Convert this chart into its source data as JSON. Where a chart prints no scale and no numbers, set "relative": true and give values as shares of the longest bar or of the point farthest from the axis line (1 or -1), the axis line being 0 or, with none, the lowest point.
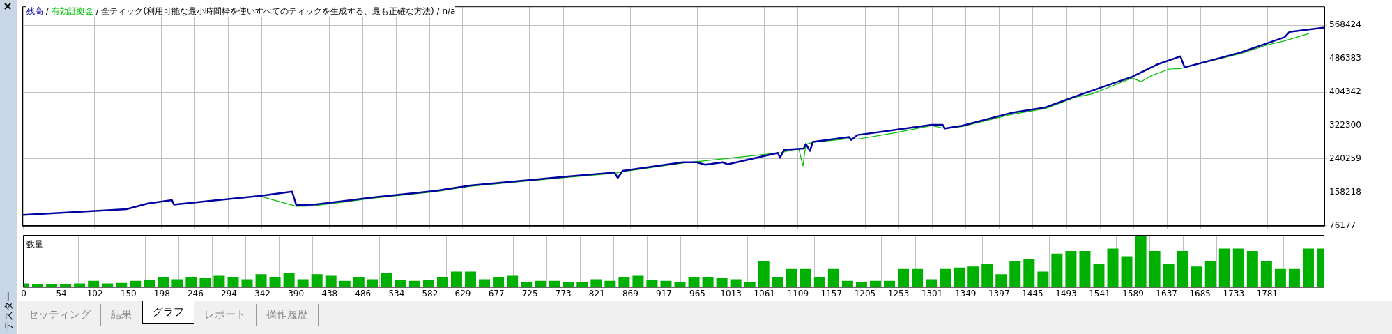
{
  "chart_data": [
    {
      "type": "line",
      "title": "全ティック(利用可能な最小時間枠を使いすべてのティックを生成する、最も正確な方法) / n/a",
      "annotations": [
        "/",
        "/"
      ],
      "legend": "top left",
      "grid": true,
      "tick_labels": "y",
      "xlim": [
        0,
        1862
      ],
      "xticks": [
        0,
        54,
        102,
        150,
        198,
        246,
        294,
        342,
        390,
        438,
        486,
        534,
        582,
        629,
        677,
        725,
        773,
        821,
        869,
        917,
        965,
        1013,
        1061,
        1109,
        1157,
        1205,
        1253,
        1301,
        1349,
        1397,
        1445,
        1493,
        1541,
        1589,
        1637,
        1685,
        1733,
        1781
      ],
      "ylim": [
        76177,
        613000
      ],
      "yticks": [
        76177,
        158218,
        240259,
        322300,
        404342,
        486383,
        568424
      ],
      "series": [
        {
          "name": "残高",
          "color": "#0000a0",
          "x": [
            0,
            148,
            179,
            213,
            216,
            266,
            341,
            385,
            391,
            416,
            497,
            590,
            640,
            777,
            846,
            851,
            858,
            944,
            964,
            976,
            1001,
            1008,
            1080,
            1083,
            1089,
            1117,
            1120,
            1126,
            1130,
            1182,
            1185,
            1194,
            1300,
            1316,
            1319,
            1344,
            1413,
            1463,
            1506,
            1587,
            1624,
            1656,
            1662,
            1743,
            1805,
            1812,
            1862
          ],
          "values": [
            103000,
            117000,
            131000,
            139000,
            128000,
            137000,
            150000,
            160000,
            127000,
            128000,
            145000,
            162000,
            175000,
            197000,
            207000,
            194000,
            211000,
            232000,
            232000,
            226000,
            232000,
            227000,
            255000,
            243000,
            263000,
            266000,
            277000,
            260000,
            282000,
            294000,
            287000,
            299000,
            324000,
            324000,
            315000,
            322000,
            353000,
            367000,
            394000,
            442000,
            473000,
            492000,
            465000,
            502000,
            539000,
            552000,
            563000
          ]
        },
        {
          "name": "有効証拠金",
          "color": "#00c000",
          "x": [
            341,
            391,
            416,
            497,
            590,
            640,
            777,
            846,
            858,
            944,
            1080,
            1083,
            1100,
            1110,
            1116,
            1120,
            1130,
            1182,
            1194,
            1250,
            1300,
            1319,
            1344,
            1413,
            1463,
            1506,
            1530,
            1550,
            1587,
            1600,
            1615,
            1640,
            1656,
            1662,
            1743,
            1780,
            1805,
            1840
          ],
          "values": [
            148000,
            124000,
            125000,
            143000,
            160000,
            173000,
            195000,
            205000,
            209000,
            230000,
            255000,
            255000,
            262000,
            265000,
            223000,
            276000,
            281000,
            290000,
            289000,
            305000,
            322000,
            315000,
            320000,
            349000,
            364000,
            392000,
            400000,
            414000,
            439000,
            430000,
            445000,
            461000,
            462000,
            465000,
            499000,
            520000,
            530000,
            548000
          ]
        }
      ]
    },
    {
      "type": "bar",
      "title": "数量",
      "relative": true,
      "grid": "x",
      "xlim": [
        0,
        1862
      ],
      "xticks": [
        0,
        54,
        102,
        150,
        198,
        246,
        294,
        342,
        390,
        438,
        486,
        534,
        582,
        629,
        677,
        725,
        773,
        821,
        869,
        917,
        965,
        1013,
        1061,
        1109,
        1157,
        1205,
        1253,
        1301,
        1349,
        1397,
        1445,
        1493,
        1541,
        1589,
        1637,
        1685,
        1733,
        1781
      ],
      "color": "#00b000",
      "x": [
        0,
        20,
        40,
        60,
        80,
        100,
        120,
        140,
        160,
        180,
        200,
        220,
        240,
        260,
        280,
        300,
        320,
        340,
        360,
        380,
        400,
        420,
        440,
        460,
        480,
        500,
        520,
        540,
        560,
        580,
        600,
        620,
        640,
        660,
        680,
        700,
        720,
        740,
        760,
        780,
        800,
        820,
        840,
        860,
        880,
        900,
        920,
        940,
        960,
        980,
        1000,
        1020,
        1040,
        1060,
        1080,
        1100,
        1120,
        1140,
        1160,
        1180,
        1200,
        1220,
        1240,
        1260,
        1280,
        1300,
        1320,
        1340,
        1360,
        1380,
        1400,
        1420,
        1440,
        1460,
        1480,
        1500,
        1520,
        1540,
        1560,
        1580,
        1600,
        1620,
        1640,
        1660,
        1680,
        1700,
        1720,
        1740,
        1760,
        1780,
        1800,
        1820,
        1840,
        1860
      ],
      "values": [
        0.07,
        0.06,
        0.06,
        0.06,
        0.07,
        0.12,
        0.07,
        0.08,
        0.12,
        0.14,
        0.2,
        0.15,
        0.2,
        0.18,
        0.22,
        0.2,
        0.15,
        0.25,
        0.2,
        0.28,
        0.15,
        0.25,
        0.22,
        0.12,
        0.2,
        0.15,
        0.27,
        0.14,
        0.12,
        0.13,
        0.2,
        0.3,
        0.3,
        0.15,
        0.2,
        0.22,
        0.1,
        0.12,
        0.12,
        0.1,
        0.1,
        0.15,
        0.12,
        0.2,
        0.22,
        0.14,
        0.12,
        0.1,
        0.2,
        0.2,
        0.18,
        0.15,
        0.1,
        0.5,
        0.2,
        0.35,
        0.35,
        0.2,
        0.35,
        0.12,
        0.1,
        0.12,
        0.12,
        0.35,
        0.35,
        0.15,
        0.35,
        0.38,
        0.4,
        0.45,
        0.25,
        0.5,
        0.55,
        0.3,
        0.65,
        0.7,
        0.7,
        0.45,
        0.75,
        0.6,
        1,
        0.7,
        0.45,
        0.7,
        0.4,
        0.5,
        0.75,
        0.75,
        0.7,
        0.5,
        0.35,
        0.35,
        0.75,
        0.75
      ]
    },
    {
      "type": "other",
      "annotations": [
        "テスター",
        "セッティング",
        "結果",
        "グラフ",
        "レポート",
        "操作履歴"
      ]
    }
  ]
}
